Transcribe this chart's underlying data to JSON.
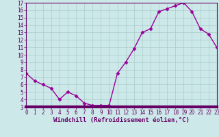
{
  "x": [
    0,
    1,
    2,
    3,
    4,
    5,
    6,
    7,
    8,
    9,
    10,
    11,
    12,
    13,
    14,
    15,
    16,
    17,
    18,
    19,
    20,
    21,
    22,
    23
  ],
  "y": [
    7.5,
    6.5,
    6.0,
    5.5,
    4.0,
    5.0,
    4.5,
    3.5,
    3.2,
    3.2,
    3.2,
    7.5,
    9.0,
    10.8,
    13.0,
    13.5,
    15.8,
    16.2,
    16.6,
    17.0,
    15.8,
    13.5,
    12.8,
    11.0
  ],
  "xlabel": "Windchill (Refroidissement éolien,°C)",
  "xlim": [
    0,
    23
  ],
  "ylim": [
    3,
    17
  ],
  "yticks": [
    3,
    4,
    5,
    6,
    7,
    8,
    9,
    10,
    11,
    12,
    13,
    14,
    15,
    16,
    17
  ],
  "xticks": [
    0,
    1,
    2,
    3,
    4,
    5,
    6,
    7,
    8,
    9,
    10,
    11,
    12,
    13,
    14,
    15,
    16,
    17,
    18,
    19,
    20,
    21,
    22,
    23
  ],
  "line_color": "#990099",
  "marker": "D",
  "bg_color": "#cce8e8",
  "grid_color": "#aacccc",
  "tick_label_color": "#660066",
  "xlabel_color": "#660066",
  "xlabel_fontsize": 6.5,
  "tick_fontsize": 5.5,
  "marker_size": 2.5,
  "line_width": 1.0,
  "spine_color": "#660066",
  "bottom_bar_color": "#660066"
}
